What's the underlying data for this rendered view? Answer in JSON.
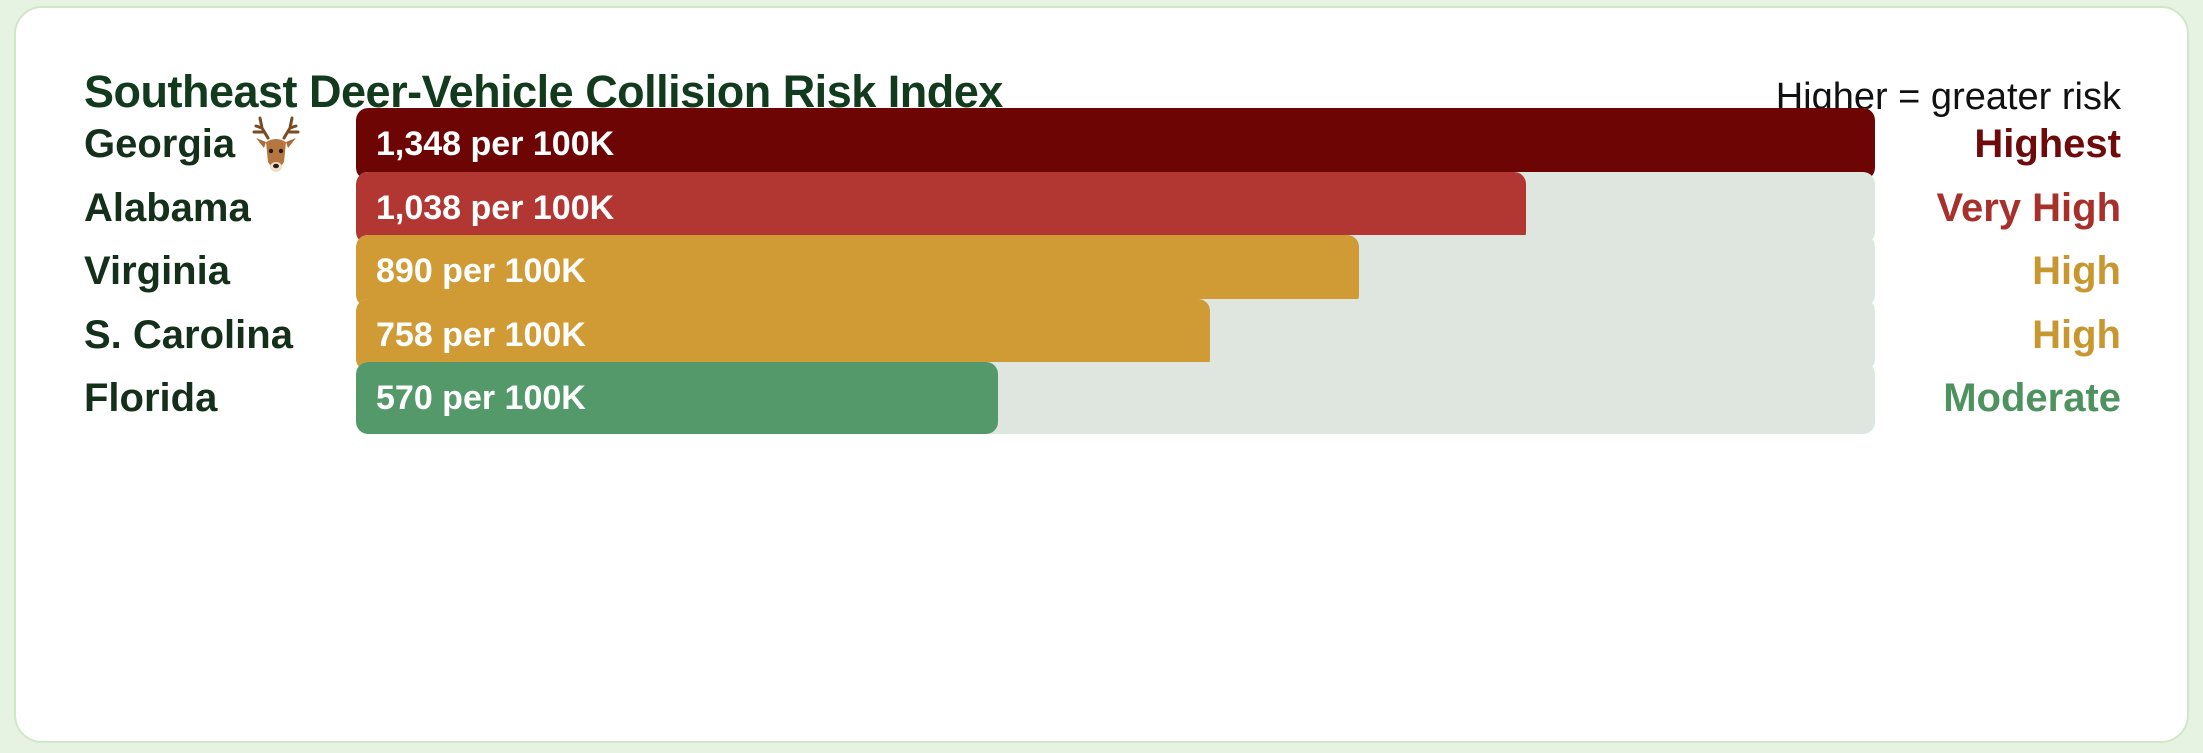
{
  "chart_data": {
    "type": "bar",
    "orientation": "horizontal",
    "title": "Southeast Deer-Vehicle Collision Risk Index",
    "note": "Higher = greater risk",
    "xlim": [
      0,
      1348
    ],
    "unit": "per 100K",
    "categories": [
      "Georgia",
      "Alabama",
      "Virginia",
      "S. Carolina",
      "Florida"
    ],
    "values": [
      1348,
      1038,
      890,
      758,
      570
    ],
    "value_labels": [
      "1,348 per 100K",
      "1,038 per 100K",
      "890 per 100K",
      "758 per 100K",
      "570 per 100K"
    ],
    "risk_levels": [
      "Highest",
      "Very High",
      "High",
      "High",
      "Moderate"
    ],
    "bar_colors": [
      "#6e0505",
      "#b23631",
      "#d09a35",
      "#d09a35",
      "#54996a"
    ],
    "risk_colors": [
      "#6e0a0a",
      "#a8302b",
      "#c9972f",
      "#c9972f",
      "#4d925f"
    ],
    "icon": "deer-head-icon",
    "icon_row": "Georgia",
    "grid": false,
    "legend": "none"
  }
}
